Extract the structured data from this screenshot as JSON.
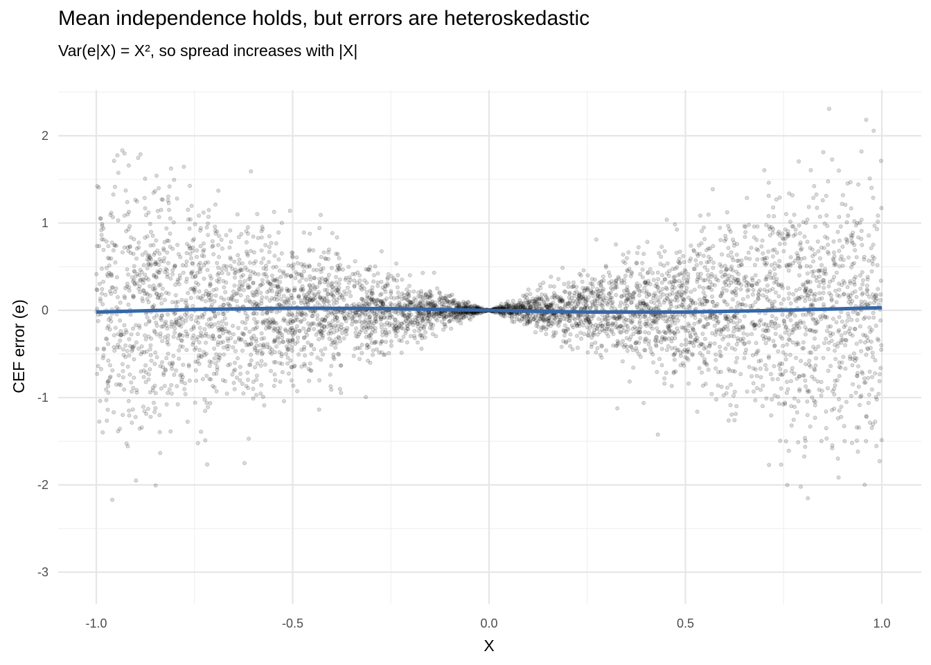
{
  "chart_data": {
    "type": "scatter",
    "title": "Mean independence holds, but errors are heteroskedastic",
    "subtitle": "Var(e|X) = X², so spread increases with |X|",
    "xlabel": "X",
    "ylabel": "CEF error (e)",
    "xlim": [
      -1.05,
      1.05
    ],
    "ylim": [
      -3.3,
      2.5
    ],
    "xticks": [
      "-1.0",
      "-0.5",
      "0.0",
      "0.5",
      "1.0"
    ],
    "xtick_values": [
      -1.0,
      -0.5,
      0.0,
      0.5,
      1.0
    ],
    "yticks": [
      "-3",
      "-2",
      "-1",
      "0",
      "1",
      "2"
    ],
    "ytick_values": [
      -3,
      -2,
      -1,
      0,
      1,
      2
    ],
    "grid": true,
    "scatter": {
      "x_distribution": "uniform(-1, 1)",
      "e_distribution": "normal(0, |X|)",
      "point_color": "#000000",
      "point_alpha": 0.18
    },
    "smooth_line": {
      "color": "#3567A8",
      "x": [
        -1.0,
        -0.75,
        -0.5,
        -0.25,
        0.0,
        0.25,
        0.5,
        0.75,
        1.0
      ],
      "y": [
        -0.02,
        0.01,
        0.025,
        0.02,
        0.0,
        -0.02,
        -0.02,
        0.0,
        0.03
      ]
    }
  }
}
